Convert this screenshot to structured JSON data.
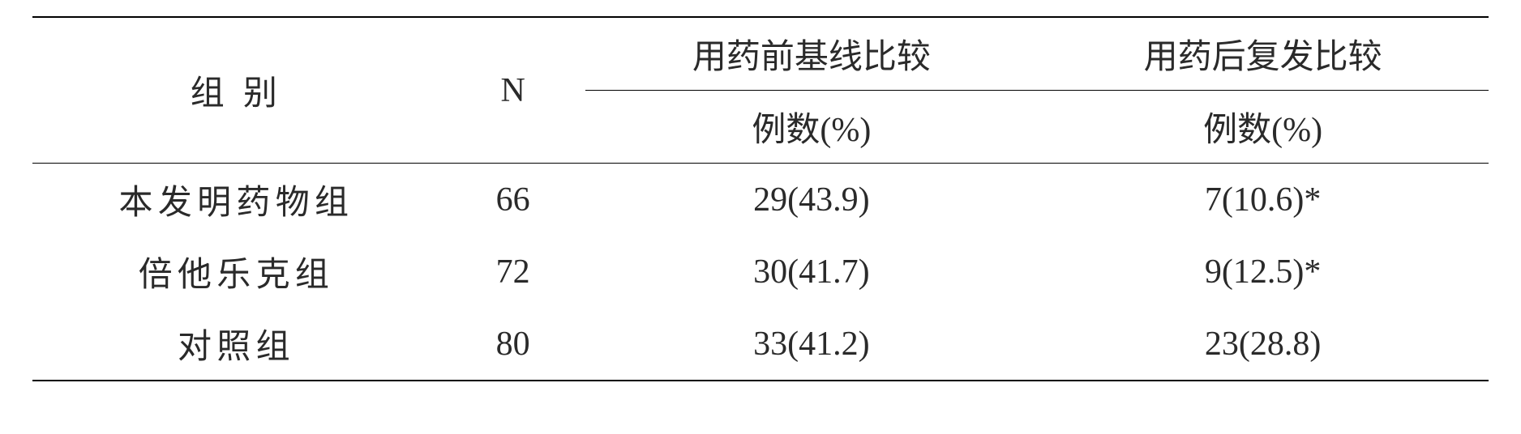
{
  "table": {
    "headers": {
      "group": "组  别",
      "n": "N",
      "baseline": "用药前基线比较",
      "recurrence": "用药后复发比较",
      "cases_pct": "例数(%)"
    },
    "rows": [
      {
        "group": "本发明药物组",
        "n": "66",
        "baseline": "29(43.9)",
        "recurrence": "7(10.6)*"
      },
      {
        "group": "倍他乐克组",
        "n": "72",
        "baseline": "30(41.7)",
        "recurrence": "9(12.5)*"
      },
      {
        "group": "对照组",
        "n": "80",
        "baseline": "33(41.2)",
        "recurrence": "23(28.8)"
      }
    ],
    "styling": {
      "font_family": "SimSun",
      "font_size_pt": 42,
      "text_color": "#2a2a2a",
      "background_color": "#ffffff",
      "outer_border_width": 2.5,
      "inner_border_width": 1.5,
      "border_color": "#000000"
    }
  }
}
